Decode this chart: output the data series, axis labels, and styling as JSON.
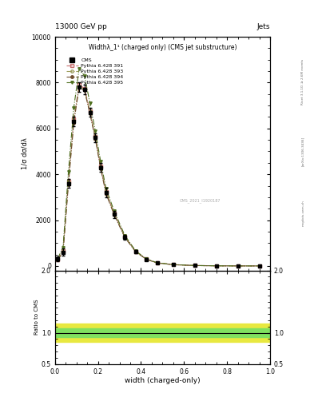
{
  "title_top": "13000 GeV pp",
  "title_right": "Jets",
  "plot_title": "Widthλ_1¹ (charged only) (CMS jet substructure)",
  "xlabel": "width (charged-only)",
  "ylabel_ratio": "Ratio to CMS",
  "rivet_label": "Rivet 3.1.10; ≥ 2.6M events",
  "arxiv_label": "[arXiv:1306.3436]",
  "mcplots_label": "mcplots.cern.ch",
  "cms_label": "CMS_2021_I1920187",
  "legend_entries": [
    "CMS",
    "Pythia 6.428 391",
    "Pythia 6.428 393",
    "Pythia 6.428 394",
    "Pythia 6.428 395"
  ],
  "x_bins": [
    0.0,
    0.025,
    0.05,
    0.075,
    0.1,
    0.125,
    0.15,
    0.175,
    0.2,
    0.225,
    0.25,
    0.3,
    0.35,
    0.4,
    0.45,
    0.5,
    0.6,
    0.7,
    0.8,
    0.9,
    1.0
  ],
  "cms_values": [
    300,
    600,
    3600,
    6300,
    7800,
    7700,
    6700,
    5600,
    4300,
    3200,
    2250,
    1250,
    620,
    290,
    130,
    55,
    18,
    6,
    2,
    0.5
  ],
  "cms_errors": [
    100,
    150,
    200,
    200,
    200,
    200,
    200,
    200,
    200,
    200,
    150,
    100,
    60,
    40,
    25,
    15,
    8,
    4,
    2,
    1
  ],
  "py391_values": [
    280,
    650,
    3700,
    6400,
    7900,
    7750,
    6750,
    5650,
    4350,
    3250,
    2300,
    1280,
    640,
    295,
    133,
    57,
    19,
    6.5,
    2.2,
    0.6
  ],
  "py393_values": [
    270,
    620,
    3650,
    6350,
    7850,
    7700,
    6700,
    5600,
    4300,
    3200,
    2270,
    1260,
    630,
    292,
    132,
    56,
    18.5,
    6.3,
    2.1,
    0.55
  ],
  "py394_values": [
    260,
    590,
    3550,
    6250,
    7800,
    7650,
    6650,
    5550,
    4250,
    3150,
    2240,
    1240,
    620,
    288,
    130,
    55,
    18,
    6.1,
    2.0,
    0.52
  ],
  "py395_values": [
    320,
    800,
    4100,
    6900,
    8600,
    8300,
    7100,
    5900,
    4550,
    3380,
    2400,
    1330,
    660,
    308,
    138,
    60,
    20,
    6.8,
    2.3,
    0.62
  ],
  "color_391": "#d4909090",
  "color_393": "#b0b07080",
  "color_394": "#806040",
  "color_395": "#607030",
  "color_cms": "#000000",
  "ratio_band_yellow": "#e8e840",
  "ratio_band_green": "#80e060",
  "xlim": [
    0.0,
    1.0
  ],
  "ylim_main": [
    -200,
    10000
  ],
  "yticks_main": [
    0,
    2000,
    4000,
    6000,
    8000,
    10000
  ],
  "ylim_ratio": [
    0.5,
    2.0
  ],
  "yticks_ratio": [
    0.5,
    1.0,
    2.0
  ]
}
